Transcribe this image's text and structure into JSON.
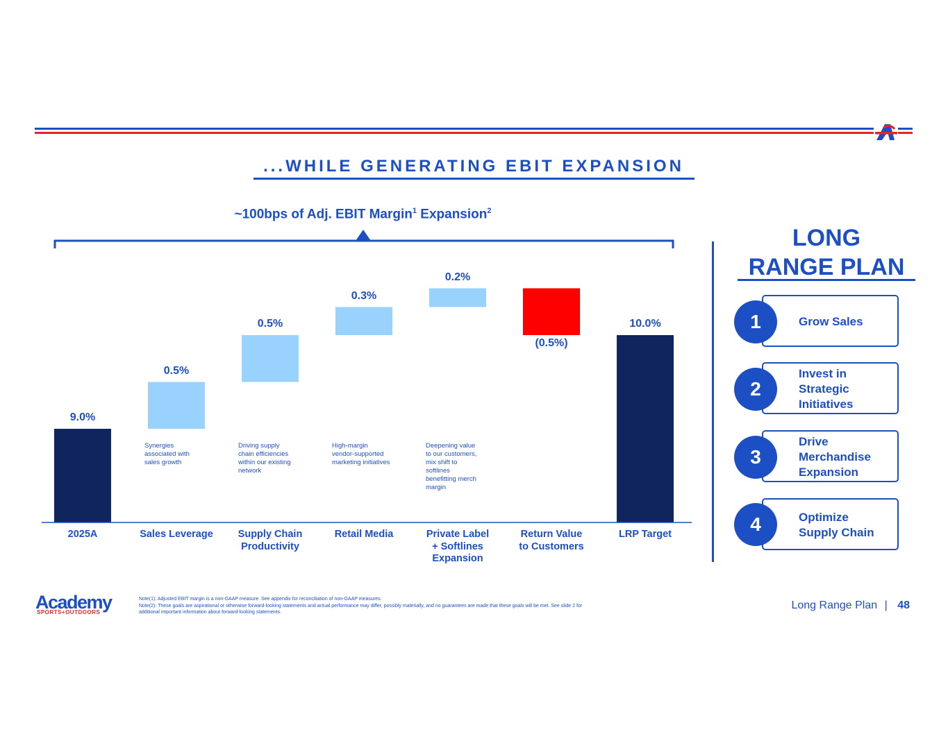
{
  "title": "...WHILE GENERATING EBIT EXPANSION",
  "bracket": {
    "text": "~100bps of Adj. EBIT Margin",
    "sup1": "1",
    "text2": " Expansion",
    "sup2": "2"
  },
  "colors": {
    "brand_blue": "#1d4fc4",
    "navy": "#10245e",
    "light_blue": "#99d3fd",
    "red": "#ff0000",
    "stripe_red": "#e3262a"
  },
  "chart_data": {
    "type": "bar",
    "subtype": "waterfall",
    "categories": [
      "2025A",
      "Sales Leverage",
      "Supply Chain Productivity",
      "Retail Media",
      "Private Label + Softlines Expansion",
      "Return Value to Customers",
      "LRP Target"
    ],
    "values": [
      9.0,
      0.5,
      0.5,
      0.3,
      0.2,
      -0.5,
      10.0
    ],
    "kinds": [
      "total",
      "delta",
      "delta",
      "delta",
      "delta",
      "delta",
      "total"
    ],
    "value_labels": [
      "9.0%",
      "0.5%",
      "0.5%",
      "0.3%",
      "0.2%",
      "(0.5%)",
      "10.0%"
    ],
    "descriptions": [
      "",
      "Synergies\nassociated with\nsales growth",
      "Driving supply\nchain efficiencies\nwithin our existing\nnetwork",
      "High-margin\nvendor-supported\nmarketing initiatives",
      "Deepening value\nto our customers,\nmix shift to\nsoftlines\nbenefitting merch\nmargin",
      "",
      ""
    ],
    "category_lines": [
      [
        "2025A"
      ],
      [
        "Sales Leverage"
      ],
      [
        "Supply Chain",
        "Productivity"
      ],
      [
        "Retail Media"
      ],
      [
        "Private Label",
        "+ Softlines",
        "Expansion"
      ],
      [
        "Return Value",
        "to Customers"
      ],
      [
        "LRP Target"
      ]
    ]
  },
  "long_range_plan": {
    "title_line1": "LONG",
    "title_line2": "RANGE PLAN",
    "pillars": [
      {
        "number": "1",
        "label": "Grow Sales"
      },
      {
        "number": "2",
        "label": "Invest in Strategic Initiatives"
      },
      {
        "number": "3",
        "label": "Drive Merchandise Expansion"
      },
      {
        "number": "4",
        "label": "Optimize Supply Chain"
      }
    ]
  },
  "notes": {
    "note1": "Note(1): Adjusted EBIT margin is a non-GAAP measure. See appendix for reconciliation of non-GAAP measures.",
    "note2": "Note(2): These goals are aspirational or otherwise forward-looking statements and actual performance may differ, possibly materially, and no guarantees are made that these goals will be met. See slide 2 for additional important information about forward-looking statements."
  },
  "logo": {
    "word": "Academy",
    "sub": "SPORTS+OUTDOORS",
    "mark": "A"
  },
  "footer": {
    "section": "Long Range Plan",
    "separator": "|",
    "page": "48"
  }
}
